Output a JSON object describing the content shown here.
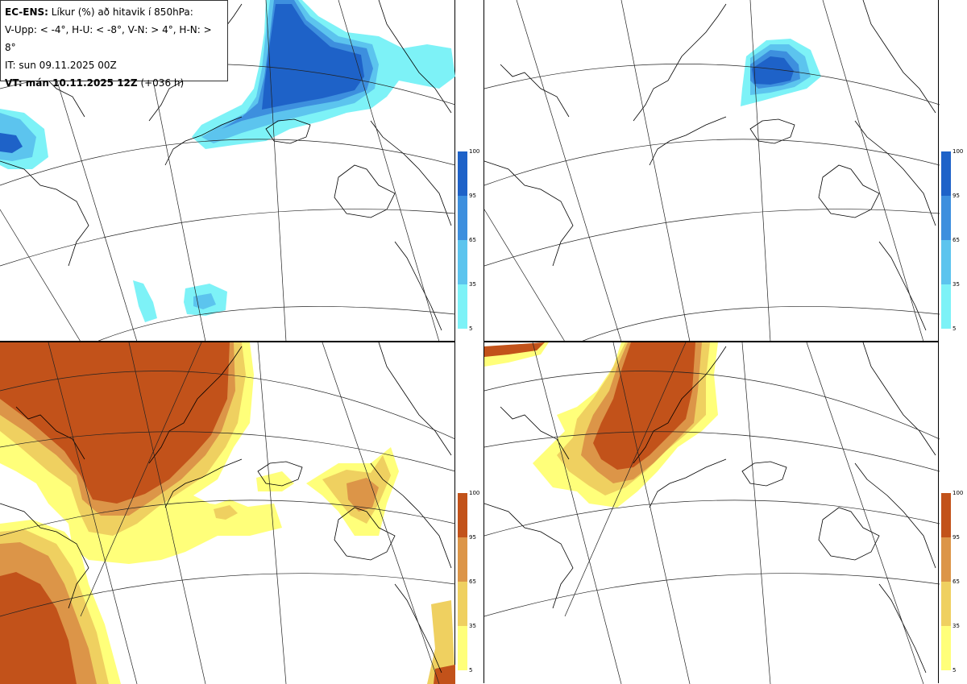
{
  "legend": {
    "model": "EC-ENS:",
    "title": "Líkur (%) að hitavik í 850hPa:",
    "thresholds": "V-Upp: < -4°, H-U: < -8°, V-N: > 4°, H-N: > 8°",
    "init_time": "IT: sun 09.11.2025 00Z",
    "valid_label": "VT: mán 10.11.2025 12Z",
    "lead": "(+036 h)"
  },
  "panels": [
    {
      "id": "V-Upp",
      "variable": "probability 850hPa anomaly < -4°",
      "palette": "cold"
    },
    {
      "id": "H-U",
      "variable": "probability 850hPa anomaly < -8°",
      "palette": "cold"
    },
    {
      "id": "V-N",
      "variable": "probability 850hPa anomaly > 4°",
      "palette": "warm"
    },
    {
      "id": "H-N",
      "variable": "probability 850hPa anomaly > 8°",
      "palette": "warm"
    }
  ],
  "colorbar": {
    "ticks": [
      "100",
      "95",
      "65",
      "35",
      "5"
    ],
    "cold_colors": [
      "#1e62c8",
      "#3d8fde",
      "#5cc4ee",
      "#7df2f7"
    ],
    "warm_colors": [
      "#c2521a",
      "#dc9548",
      "#efd060",
      "#ffff7a"
    ]
  }
}
